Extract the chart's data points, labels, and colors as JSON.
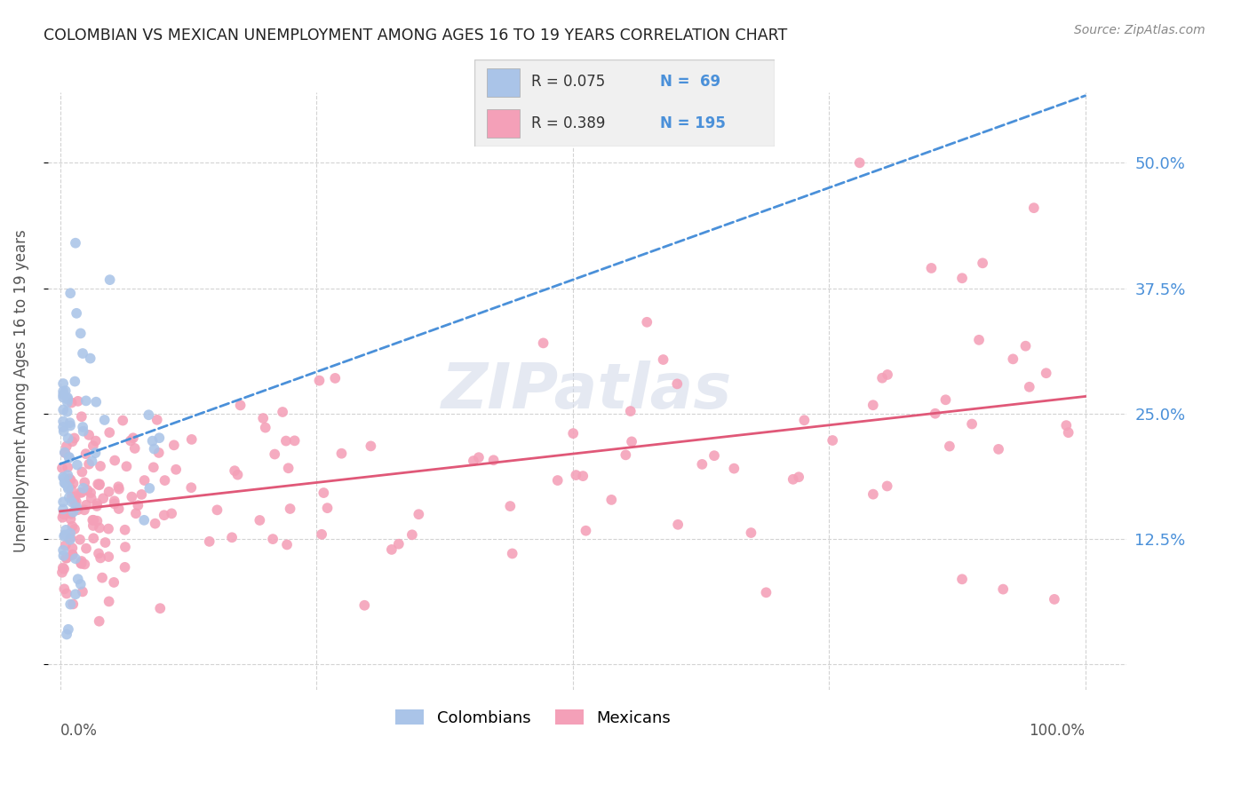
{
  "title": "COLOMBIAN VS MEXICAN UNEMPLOYMENT AMONG AGES 16 TO 19 YEARS CORRELATION CHART",
  "source": "Source: ZipAtlas.com",
  "ylabel": "Unemployment Among Ages 16 to 19 years",
  "watermark": "ZIPatlas",
  "legend_r1": "R = 0.075",
  "legend_n1": "N =  69",
  "legend_r2": "R = 0.389",
  "legend_n2": "N = 195",
  "colombia_color": "#aac4e8",
  "mexico_color": "#f4a0b8",
  "colombia_line_color": "#4a90d9",
  "mexico_line_color": "#e05878",
  "background_color": "#ffffff",
  "grid_color": "#c8c8c8",
  "ytick_positions": [
    0.0,
    0.125,
    0.25,
    0.375,
    0.5
  ],
  "ytick_labels": [
    "",
    "12.5%",
    "25.0%",
    "37.5%",
    "50.0%"
  ],
  "col_seed": 123,
  "mex_seed": 456
}
